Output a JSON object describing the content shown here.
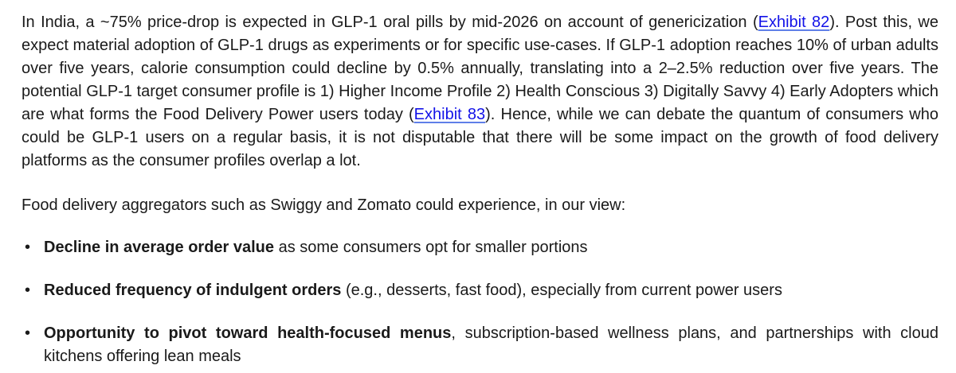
{
  "colors": {
    "background": "#FFFFFF",
    "text": "#1A1A1A",
    "link": "#1212E8"
  },
  "document": {
    "intro": {
      "seg1": "In India, a ~75% price-drop is expected in GLP-1 oral pills by mid-2026 on account of genericization (",
      "link_exhibit_82": "Exhibit 82",
      "seg2": "). Post this, we expect material adoption of GLP-1 drugs as experiments or for specific use-cases. If GLP-1 adoption reaches 10% of urban adults over five years, calorie consumption could decline by 0.5% annually, translating into a 2–2.5% reduction over five years. The potential GLP-1 target consumer profile is 1) Higher Income Profile 2) Health Conscious 3) Digitally Savvy 4) Early Adopters which are what forms the Food Delivery Power users today (",
      "link_exhibit_83": "Exhibit 83",
      "seg3": "). Hence, while we can debate the quantum of consumers who could be GLP-1 users on a regular basis, it is not disputable that there will be some impact on the growth of food delivery platforms as the consumer profiles overlap a lot."
    },
    "aggregators_line": "Food delivery aggregators such as Swiggy and Zomato could experience, in our view:",
    "bullet_glyph": "•",
    "bullets": [
      {
        "bold": "Decline in average order value",
        "rest": " as some consumers opt for smaller portions"
      },
      {
        "bold": "Reduced frequency of indulgent orders",
        "rest": " (e.g., desserts, fast food), especially from current power users"
      },
      {
        "bold": "Opportunity to pivot toward health-focused menus",
        "rest": ", subscription-based wellness plans, and partnerships with cloud kitchens offering lean meals"
      }
    ]
  }
}
